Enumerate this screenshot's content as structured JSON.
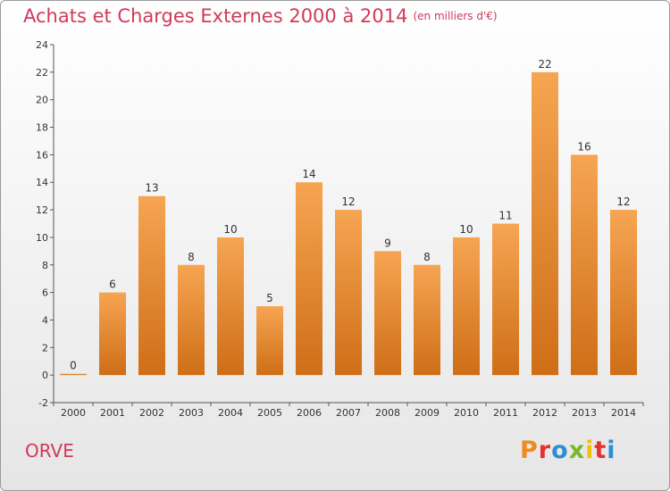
{
  "header": {
    "title": "Achats et Charges Externes 2000 à 2014",
    "unit": "(en milliers d'€)"
  },
  "footer": {
    "commune": "ORVE",
    "logo_text": "Proxiti",
    "logo_colors": [
      "#f08a1c",
      "#e5322d",
      "#2a8fd4",
      "#79b829",
      "#f3c200",
      "#e5322d",
      "#2a8fd4"
    ]
  },
  "colors": {
    "title": "#d03a5a",
    "bar_top": "#f6a552",
    "bar_bottom": "#cf6e17"
  },
  "chart_data": {
    "type": "bar",
    "title": "Achats et Charges Externes 2000 à 2014",
    "categories": [
      "2000",
      "2001",
      "2002",
      "2003",
      "2004",
      "2005",
      "2006",
      "2007",
      "2008",
      "2009",
      "2010",
      "2011",
      "2012",
      "2013",
      "2014"
    ],
    "values": [
      0,
      6,
      13,
      8,
      10,
      5,
      14,
      12,
      9,
      8,
      10,
      11,
      22,
      16,
      12
    ],
    "yticks": [
      -2,
      0,
      2,
      4,
      6,
      8,
      10,
      12,
      14,
      16,
      18,
      20,
      22,
      24
    ],
    "ylim": [
      -2,
      24
    ],
    "grid": false,
    "legend": "none"
  }
}
